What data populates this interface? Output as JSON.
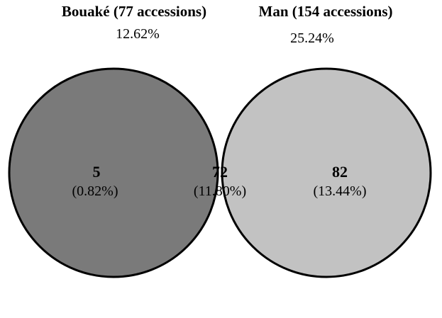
{
  "sets": [
    {
      "id": "left",
      "title": "Bouaké (77 accessions)",
      "percent": "12.62%",
      "fill": "#7a7a7a"
    },
    {
      "id": "right",
      "title": "Man (154 accessions)",
      "percent": "25.24%",
      "fill": "#c2c2c2"
    }
  ],
  "regions": {
    "left_only": {
      "count": "5",
      "percent": "(0.82%)"
    },
    "overlap": {
      "count": "72",
      "percent": "(11.80%)",
      "fill": "#ffffff"
    },
    "right_only": {
      "count": "82",
      "percent": "(13.44%)"
    }
  },
  "stroke_color": "#000000"
}
